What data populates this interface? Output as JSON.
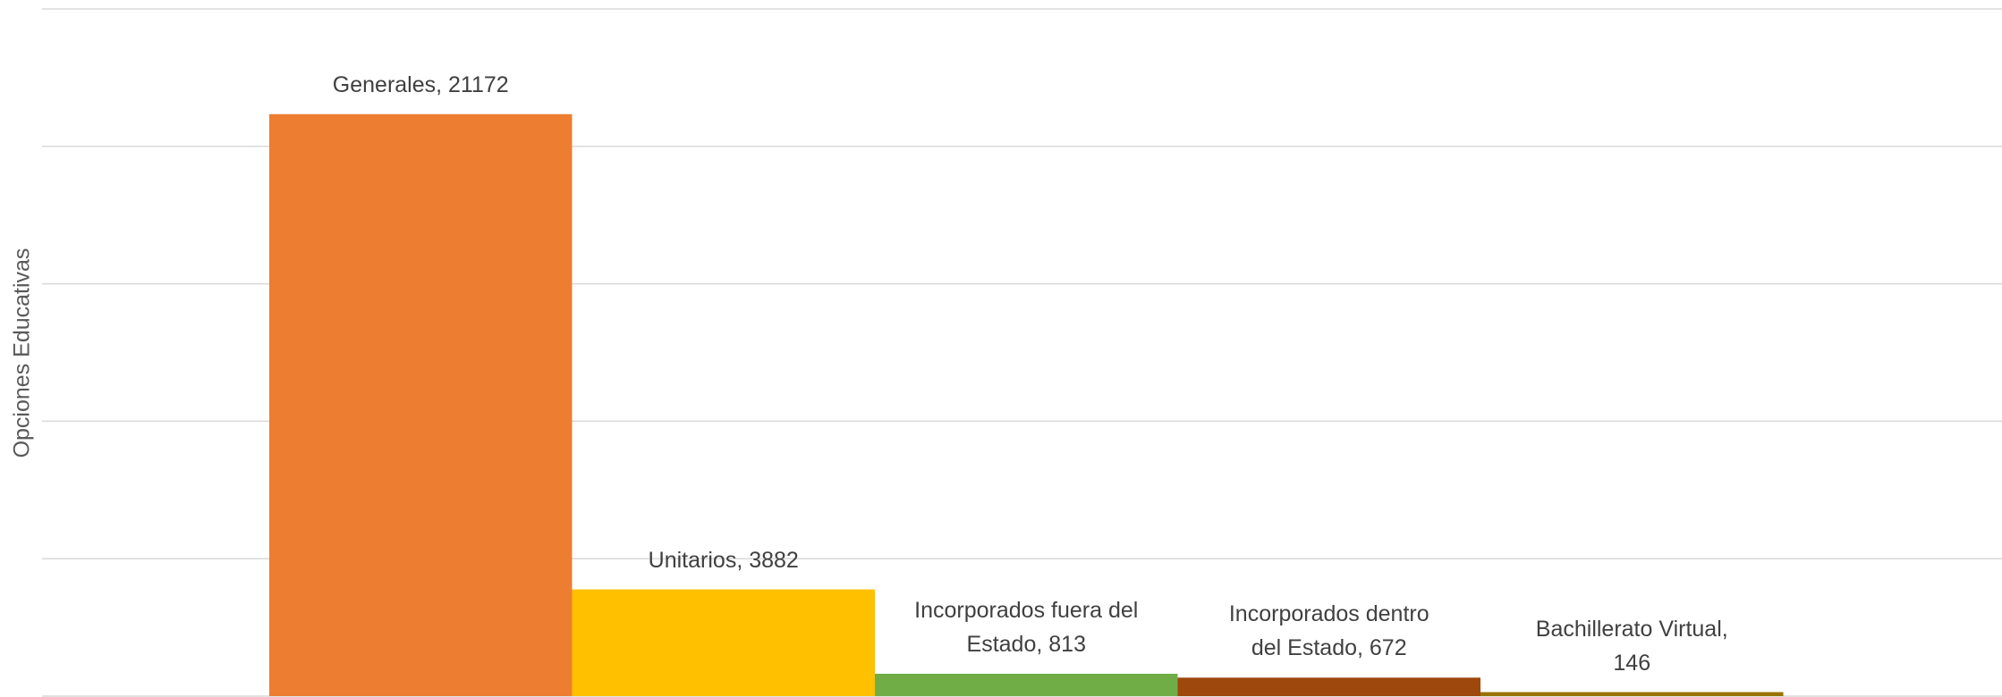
{
  "chart_data": {
    "type": "bar",
    "y_axis_label": "Opciones Educativas",
    "categories": [
      "Generales",
      "Unitarios",
      "Incorporados fuera del Estado",
      "Incorporados dentro del Estado",
      "Bachillerato Virtual"
    ],
    "values": [
      21172,
      3882,
      813,
      672,
      146
    ],
    "value_labels": [
      "Generales, 21172",
      "Unitarios, 3882",
      "Incorporados fuera del Estado, 813",
      "Incorporados dentro del Estado, 672",
      "Bachillerato Virtual, 146"
    ],
    "colors": [
      "#ed7d31",
      "#ffc000",
      "#70ad47",
      "#9e480e",
      "#997300"
    ],
    "ylim": [
      0,
      25000
    ],
    "yticks": [
      0,
      5000,
      10000,
      15000,
      20000,
      25000
    ],
    "grid": true
  }
}
